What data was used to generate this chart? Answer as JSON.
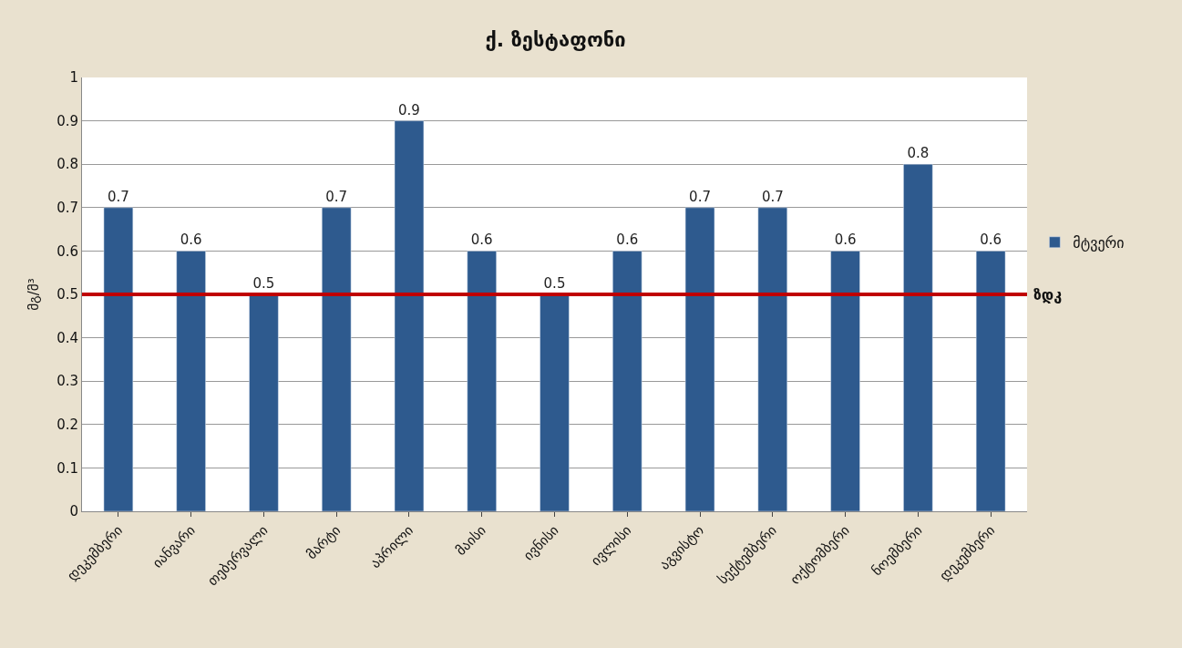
{
  "chart_data": {
    "type": "bar",
    "title": "ქ. ზესტაფონი",
    "ylabel": "მგ/მ³",
    "categories": [
      "დეკემბერი",
      "იანვარი",
      "თებერვალი",
      "მარტი",
      "აპრილი",
      "მაისი",
      "ივნისი",
      "ივლისი",
      "აგვისტო",
      "სექტემბერი",
      "ოქტომბერი",
      "ნოემბერი",
      "დეკემბერი"
    ],
    "series": [
      {
        "name": "მტვერი",
        "color": "#2e5a8e",
        "values": [
          0.7,
          0.6,
          0.5,
          0.7,
          0.9,
          0.6,
          0.5,
          0.6,
          0.7,
          0.7,
          0.6,
          0.8,
          0.6
        ]
      }
    ],
    "ref_lines": [
      {
        "axis": "y",
        "value": 0.5,
        "label": "ზდკ",
        "color": "#c00000"
      }
    ],
    "ylim": [
      0,
      1
    ],
    "yticks": [
      0,
      0.1,
      0.2,
      0.3,
      0.4,
      0.5,
      0.6,
      0.7,
      0.8,
      0.9,
      1
    ],
    "grid": "y",
    "legend": "right",
    "data_labels": true
  }
}
